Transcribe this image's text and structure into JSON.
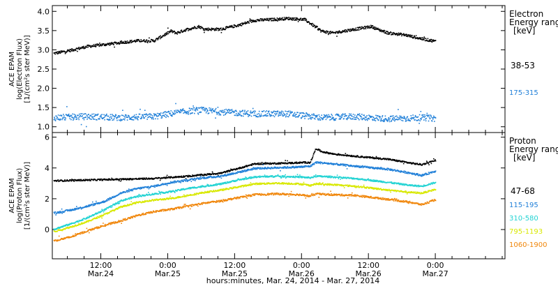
{
  "chart_data": [
    {
      "type": "scatter",
      "panel": "electron",
      "ylabel_lines": [
        "ACE EPAM",
        "log(Electron Flux)",
        "[1/(cm²s ster MeV)]"
      ],
      "ylim": [
        0.85,
        4.15
      ],
      "yticks": [
        {
          "v": 1.0,
          "label": "1.0"
        },
        {
          "v": 1.5,
          "label": "1.5"
        },
        {
          "v": 2.0,
          "label": "2.0"
        },
        {
          "v": 2.5,
          "label": "2.5"
        },
        {
          "v": 3.0,
          "label": "3.0"
        },
        {
          "v": 3.5,
          "label": "3.5"
        },
        {
          "v": 4.0,
          "label": "4.0"
        }
      ],
      "legend_title_lines": [
        "Electron",
        "Energy range",
        "[keV]"
      ],
      "series": [
        {
          "name": "38-53",
          "color": "#000000",
          "jitter": 0.035,
          "points": [
            [
              0,
              2.92
            ],
            [
              3,
              3.0
            ],
            [
              6,
              3.1
            ],
            [
              9,
              3.15
            ],
            [
              12,
              3.2
            ],
            [
              15,
              3.25
            ],
            [
              18,
              3.25
            ],
            [
              21,
              3.5
            ],
            [
              22,
              3.45
            ],
            [
              24,
              3.55
            ],
            [
              26,
              3.62
            ],
            [
              27,
              3.55
            ],
            [
              30,
              3.55
            ],
            [
              33,
              3.65
            ],
            [
              36,
              3.78
            ],
            [
              39,
              3.8
            ],
            [
              42,
              3.83
            ],
            [
              45,
              3.8
            ],
            [
              47,
              3.6
            ],
            [
              48,
              3.5
            ],
            [
              50,
              3.45
            ],
            [
              54,
              3.55
            ],
            [
              57,
              3.62
            ],
            [
              58,
              3.55
            ],
            [
              60,
              3.45
            ],
            [
              63,
              3.4
            ],
            [
              66,
              3.3
            ],
            [
              69,
              3.22
            ],
            [
              72,
              3.17
            ],
            [
              75,
              3.12
            ],
            [
              78,
              3.12
            ]
          ]
        },
        {
          "name": "175-315",
          "color": "#1f7fd8",
          "jitter": 0.08,
          "points": [
            [
              0,
              1.25
            ],
            [
              6,
              1.28
            ],
            [
              12,
              1.25
            ],
            [
              18,
              1.28
            ],
            [
              22,
              1.38
            ],
            [
              26,
              1.45
            ],
            [
              30,
              1.4
            ],
            [
              36,
              1.35
            ],
            [
              42,
              1.35
            ],
            [
              48,
              1.25
            ],
            [
              54,
              1.28
            ],
            [
              60,
              1.22
            ],
            [
              66,
              1.25
            ],
            [
              72,
              1.2
            ],
            [
              78,
              1.2
            ]
          ]
        }
      ]
    },
    {
      "type": "scatter",
      "panel": "proton",
      "ylabel_lines": [
        "ACE EPAM",
        "log(Proton Flux)",
        "[1/(cm²s ster MeV)]"
      ],
      "ylim": [
        -1.9,
        6.3
      ],
      "yticks": [
        {
          "v": 0,
          "label": "0"
        },
        {
          "v": 2,
          "label": "2"
        },
        {
          "v": 4,
          "label": "4"
        },
        {
          "v": 6,
          "label": "6"
        }
      ],
      "legend_title_lines": [
        "Proton",
        "Energy range",
        "[keV]"
      ],
      "series": [
        {
          "name": "47-68",
          "color": "#000000",
          "jitter": 0.05,
          "points": [
            [
              0,
              3.2
            ],
            [
              6,
              3.25
            ],
            [
              12,
              3.3
            ],
            [
              18,
              3.35
            ],
            [
              24,
              3.5
            ],
            [
              30,
              3.7
            ],
            [
              36,
              4.3
            ],
            [
              42,
              4.35
            ],
            [
              46,
              4.4
            ],
            [
              47,
              5.3
            ],
            [
              48,
              5.1
            ],
            [
              50,
              4.95
            ],
            [
              54,
              4.8
            ],
            [
              60,
              4.6
            ],
            [
              64,
              4.35
            ],
            [
              66,
              4.25
            ],
            [
              69,
              4.6
            ],
            [
              72,
              4.4
            ],
            [
              75,
              4.3
            ],
            [
              78,
              4.15
            ]
          ]
        },
        {
          "name": "115-195",
          "color": "#1f7fd8",
          "jitter": 0.06,
          "points": [
            [
              0,
              1.1
            ],
            [
              3,
              1.3
            ],
            [
              6,
              1.55
            ],
            [
              9,
              1.85
            ],
            [
              12,
              2.4
            ],
            [
              15,
              2.7
            ],
            [
              18,
              2.85
            ],
            [
              21,
              3.1
            ],
            [
              24,
              3.25
            ],
            [
              27,
              3.4
            ],
            [
              30,
              3.5
            ],
            [
              33,
              3.75
            ],
            [
              36,
              4.0
            ],
            [
              40,
              4.05
            ],
            [
              44,
              4.1
            ],
            [
              46,
              4.15
            ],
            [
              47,
              4.4
            ],
            [
              50,
              4.3
            ],
            [
              54,
              4.15
            ],
            [
              60,
              3.95
            ],
            [
              64,
              3.7
            ],
            [
              66,
              3.55
            ],
            [
              69,
              3.9
            ],
            [
              72,
              3.7
            ],
            [
              75,
              3.6
            ],
            [
              78,
              3.5
            ]
          ]
        },
        {
          "name": "310-580",
          "color": "#22d3d3",
          "jitter": 0.05,
          "points": [
            [
              0,
              0.05
            ],
            [
              3,
              0.4
            ],
            [
              6,
              0.8
            ],
            [
              9,
              1.3
            ],
            [
              12,
              1.9
            ],
            [
              15,
              2.2
            ],
            [
              18,
              2.35
            ],
            [
              21,
              2.5
            ],
            [
              24,
              2.7
            ],
            [
              27,
              2.85
            ],
            [
              30,
              3.0
            ],
            [
              33,
              3.25
            ],
            [
              36,
              3.45
            ],
            [
              40,
              3.5
            ],
            [
              44,
              3.45
            ],
            [
              46,
              3.4
            ],
            [
              47,
              3.5
            ],
            [
              50,
              3.45
            ],
            [
              54,
              3.35
            ],
            [
              60,
              3.1
            ],
            [
              64,
              2.9
            ],
            [
              66,
              2.85
            ],
            [
              69,
              3.15
            ],
            [
              72,
              2.95
            ],
            [
              75,
              2.85
            ],
            [
              78,
              2.75
            ]
          ]
        },
        {
          "name": "795-1193",
          "color": "#d8e800",
          "jitter": 0.05,
          "points": [
            [
              0,
              -0.1
            ],
            [
              3,
              0.2
            ],
            [
              6,
              0.55
            ],
            [
              9,
              1.0
            ],
            [
              12,
              1.5
            ],
            [
              15,
              1.8
            ],
            [
              18,
              1.95
            ],
            [
              21,
              2.05
            ],
            [
              24,
              2.25
            ],
            [
              27,
              2.45
            ],
            [
              30,
              2.6
            ],
            [
              33,
              2.8
            ],
            [
              36,
              3.0
            ],
            [
              40,
              3.05
            ],
            [
              44,
              3.0
            ],
            [
              46,
              2.9
            ],
            [
              47,
              3.0
            ],
            [
              50,
              2.95
            ],
            [
              54,
              2.85
            ],
            [
              60,
              2.6
            ],
            [
              64,
              2.45
            ],
            [
              66,
              2.4
            ],
            [
              69,
              2.7
            ],
            [
              72,
              2.5
            ],
            [
              75,
              2.35
            ],
            [
              78,
              2.2
            ]
          ]
        },
        {
          "name": "1060-1900",
          "color": "#f0860a",
          "jitter": 0.06,
          "points": [
            [
              0,
              -0.7
            ],
            [
              3,
              -0.45
            ],
            [
              6,
              -0.05
            ],
            [
              9,
              0.3
            ],
            [
              12,
              0.6
            ],
            [
              15,
              0.95
            ],
            [
              18,
              1.2
            ],
            [
              21,
              1.35
            ],
            [
              24,
              1.55
            ],
            [
              27,
              1.75
            ],
            [
              30,
              1.9
            ],
            [
              33,
              2.1
            ],
            [
              36,
              2.3
            ],
            [
              40,
              2.35
            ],
            [
              44,
              2.3
            ],
            [
              46,
              2.2
            ],
            [
              47,
              2.35
            ],
            [
              50,
              2.3
            ],
            [
              54,
              2.25
            ],
            [
              60,
              2.0
            ],
            [
              64,
              1.8
            ],
            [
              66,
              1.65
            ],
            [
              69,
              2.05
            ],
            [
              72,
              1.85
            ],
            [
              75,
              1.75
            ],
            [
              78,
              1.6
            ]
          ]
        }
      ]
    }
  ],
  "time_axis": {
    "unit": "hours since 00:00 Mar. 24, 2014",
    "xlim": [
      3.3,
      84.5
    ],
    "ticks": [
      {
        "h": 12,
        "time": "12:00",
        "date": "Mar.24"
      },
      {
        "h": 24,
        "time": "0:00",
        "date": "Mar.25"
      },
      {
        "h": 36,
        "time": "12:00",
        "date": "Mar.25"
      },
      {
        "h": 48,
        "time": "0:00",
        "date": "Mar.26"
      },
      {
        "h": 60,
        "time": "12:00",
        "date": "Mar.26"
      },
      {
        "h": 72,
        "time": "0:00",
        "date": "Mar.27"
      }
    ],
    "minor_step_hours": 3,
    "data_start_hour": 3.5,
    "data_end_hour": 72,
    "xlabel": "hours:minutes, Mar. 24, 2014 - Mar. 27, 2014"
  }
}
